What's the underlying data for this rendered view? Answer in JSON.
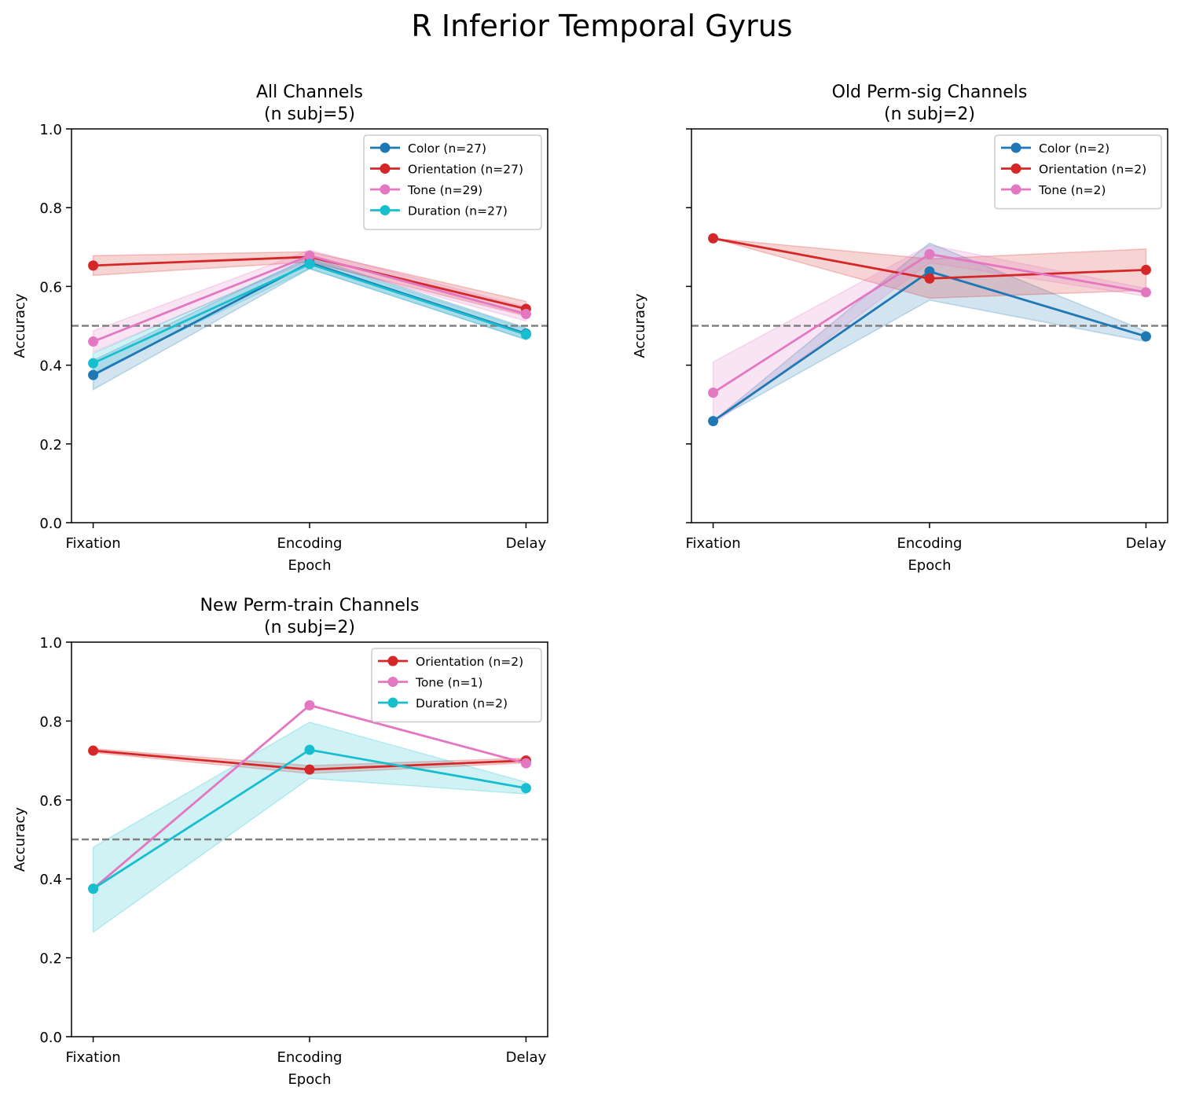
{
  "suptitle": "R Inferior Temporal Gyrus",
  "colors": {
    "Color": "#1f77b4",
    "Orientation": "#d62728",
    "Tone": "#e377c2",
    "Duration": "#17becf",
    "chance_line": "#808080"
  },
  "chart_data": [
    {
      "type": "line",
      "title": "All Channels",
      "subtitle": "(n subj=5)",
      "xlabel": "Epoch",
      "ylabel": "Accuracy",
      "categories": [
        "Fixation",
        "Encoding",
        "Delay"
      ],
      "ylim": [
        0,
        1
      ],
      "yticks": [
        "0.0",
        "0.2",
        "0.4",
        "0.6",
        "0.8",
        "1.0"
      ],
      "show_ytick_labels": true,
      "chance_level": 0.5,
      "legend_position": "top-right",
      "series": [
        {
          "name": "Color (n=27)",
          "color_key": "Color",
          "values": [
            0.375,
            0.66,
            0.48
          ],
          "lower": [
            0.338,
            0.645,
            0.465
          ],
          "upper": [
            0.412,
            0.675,
            0.495
          ]
        },
        {
          "name": "Orientation (n=27)",
          "color_key": "Orientation",
          "values": [
            0.653,
            0.675,
            0.543
          ],
          "lower": [
            0.628,
            0.662,
            0.525
          ],
          "upper": [
            0.678,
            0.688,
            0.562
          ]
        },
        {
          "name": "Tone (n=29)",
          "color_key": "Tone",
          "values": [
            0.46,
            0.678,
            0.53
          ],
          "lower": [
            0.433,
            0.665,
            0.512
          ],
          "upper": [
            0.487,
            0.692,
            0.548
          ]
        },
        {
          "name": "Duration (n=27)",
          "color_key": "Duration",
          "values": [
            0.405,
            0.657,
            0.478
          ],
          "lower": [
            0.38,
            0.645,
            0.465
          ],
          "upper": [
            0.43,
            0.67,
            0.492
          ]
        }
      ]
    },
    {
      "type": "line",
      "title": "Old Perm-sig Channels",
      "subtitle": "(n subj=2)",
      "xlabel": "Epoch",
      "ylabel": "Accuracy",
      "categories": [
        "Fixation",
        "Encoding",
        "Delay"
      ],
      "ylim": [
        0,
        1
      ],
      "yticks": [
        "0.0",
        "0.2",
        "0.4",
        "0.6",
        "0.8",
        "1.0"
      ],
      "show_ytick_labels": false,
      "chance_level": 0.5,
      "legend_position": "top-right",
      "series": [
        {
          "name": "Color (n=2)",
          "color_key": "Color",
          "values": [
            0.258,
            0.638,
            0.473
          ],
          "lower": [
            0.258,
            0.565,
            0.46
          ],
          "upper": [
            0.258,
            0.71,
            0.486
          ]
        },
        {
          "name": "Orientation (n=2)",
          "color_key": "Orientation",
          "values": [
            0.722,
            0.62,
            0.642
          ],
          "lower": [
            0.722,
            0.57,
            0.59
          ],
          "upper": [
            0.722,
            0.67,
            0.695
          ]
        },
        {
          "name": "Tone (n=2)",
          "color_key": "Tone",
          "values": [
            0.33,
            0.682,
            0.585
          ],
          "lower": [
            0.25,
            0.66,
            0.575
          ],
          "upper": [
            0.408,
            0.705,
            0.595
          ]
        }
      ]
    },
    {
      "type": "line",
      "title": "New Perm-train Channels",
      "subtitle": "(n subj=2)",
      "xlabel": "Epoch",
      "ylabel": "Accuracy",
      "categories": [
        "Fixation",
        "Encoding",
        "Delay"
      ],
      "ylim": [
        0,
        1
      ],
      "yticks": [
        "0.0",
        "0.2",
        "0.4",
        "0.6",
        "0.8",
        "1.0"
      ],
      "show_ytick_labels": true,
      "chance_level": 0.5,
      "legend_position": "top-right",
      "series": [
        {
          "name": "Orientation (n=2)",
          "color_key": "Orientation",
          "values": [
            0.725,
            0.677,
            0.7
          ],
          "lower": [
            0.72,
            0.667,
            0.694
          ],
          "upper": [
            0.73,
            0.687,
            0.706
          ]
        },
        {
          "name": "Tone (n=1)",
          "color_key": "Tone",
          "values": [
            0.375,
            0.84,
            0.693
          ]
        },
        {
          "name": "Duration (n=2)",
          "color_key": "Duration",
          "values": [
            0.375,
            0.727,
            0.63
          ],
          "lower": [
            0.265,
            0.655,
            0.615
          ],
          "upper": [
            0.48,
            0.797,
            0.645
          ]
        }
      ]
    }
  ]
}
